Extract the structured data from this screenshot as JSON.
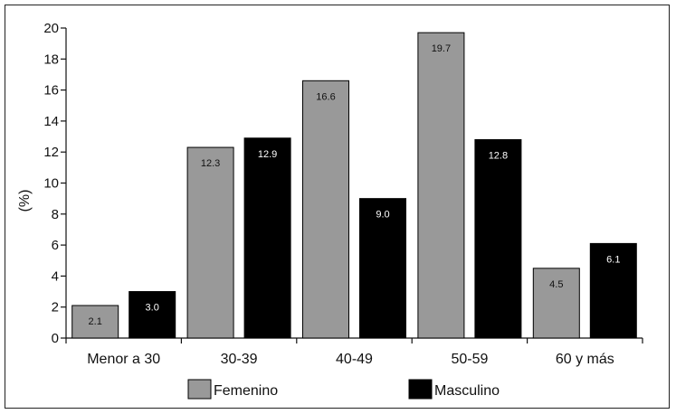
{
  "chart_data": {
    "type": "bar",
    "categories": [
      "Menor a 30",
      "30-39",
      "40-49",
      "50-59",
      "60 y más"
    ],
    "series": [
      {
        "name": "Femenino",
        "values": [
          2.1,
          12.3,
          16.6,
          19.7,
          4.5
        ],
        "labels": [
          "2.1",
          "12.3",
          "16.6",
          "19.7",
          "4.5"
        ],
        "color": "#999999",
        "label_color": "#111111"
      },
      {
        "name": "Masculino",
        "values": [
          3.0,
          12.9,
          9.0,
          12.8,
          6.1
        ],
        "labels": [
          "3.0",
          "12.9",
          "9.0",
          "12.8",
          "6.1"
        ],
        "color": "#000000",
        "label_color": "#ffffff"
      }
    ],
    "title": "",
    "xlabel": "",
    "ylabel": "(%)",
    "ylim": [
      0,
      20
    ],
    "yticks": [
      "0",
      "2",
      "4",
      "6",
      "8",
      "10",
      "12",
      "14",
      "16",
      "18",
      "20"
    ],
    "grid": false,
    "legend_position": "bottom"
  }
}
